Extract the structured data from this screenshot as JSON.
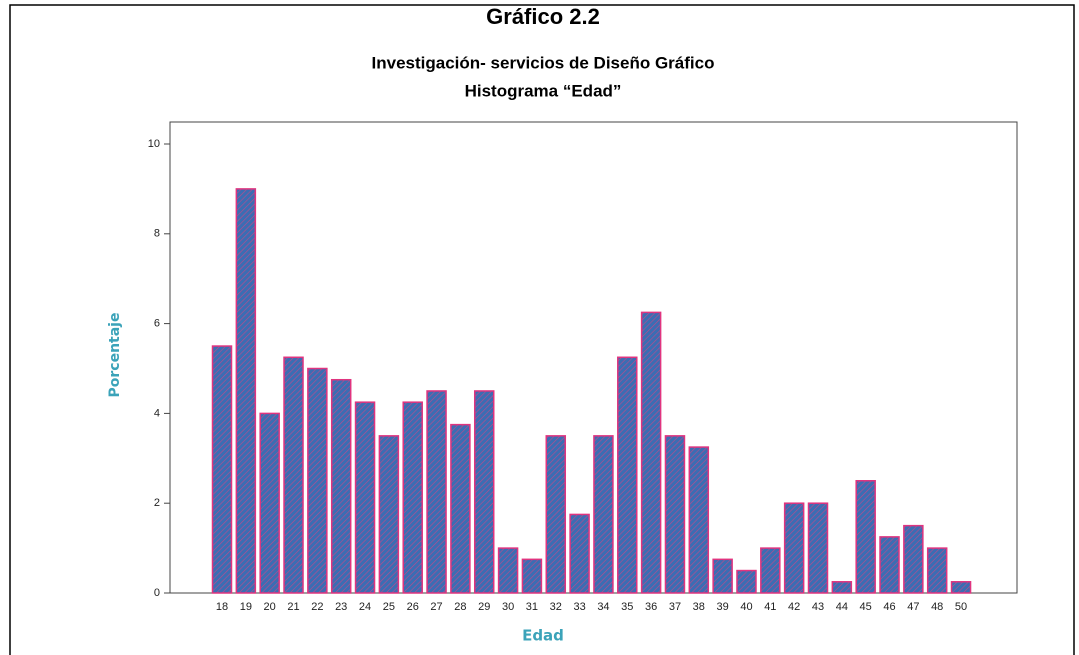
{
  "chart_data": {
    "type": "bar",
    "title": "Gráfico  2.2",
    "subtitle": [
      "Investigación- servicios de Diseño  Gráfico",
      "Histograma “Edad”"
    ],
    "x_label": "Edad",
    "y_label": "Porcentaje",
    "categories": [
      "18",
      "19",
      "20",
      "21",
      "22",
      "23",
      "24",
      "25",
      "26",
      "27",
      "28",
      "29",
      "30",
      "31",
      "32",
      "33",
      "34",
      "35",
      "36",
      "37",
      "38",
      "39",
      "40",
      "41",
      "42",
      "43",
      "44",
      "45",
      "46",
      "47",
      "48",
      "50"
    ],
    "values": [
      5.5,
      9,
      4,
      5.25,
      5,
      4.75,
      4.25,
      3.5,
      4.25,
      4.5,
      3.75,
      4.5,
      1,
      0.75,
      3.5,
      1.75,
      3.5,
      5.25,
      6.25,
      3.5,
      3.25,
      0.75,
      0.5,
      1,
      2,
      2,
      0.25,
      2.5,
      1.25,
      1.5,
      1,
      0.25
    ],
    "color": "#3b6db3",
    "edge_color": "#e0347f",
    "ylim": [
      0,
      10
    ],
    "yticks": [
      0,
      2,
      4,
      6,
      8,
      10
    ],
    "grid": false
  }
}
